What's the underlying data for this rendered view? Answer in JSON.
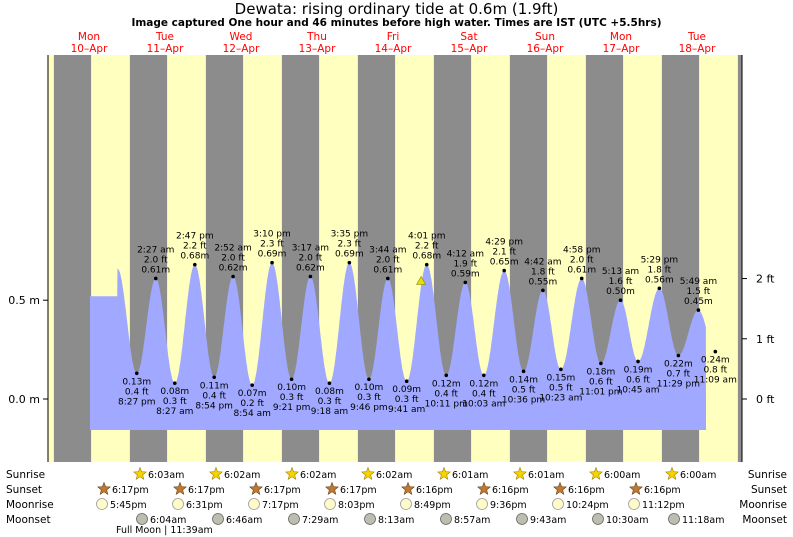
{
  "title": "Dewata: rising  ordinary tide at 0.6m (1.9ft)",
  "subtitle": "Image captured One hour and 46 minutes before high water. Times are IST (UTC +5.5hrs)",
  "colors": {
    "day": "#ffffc0",
    "night": "#8c8c8c",
    "tide": "#a0a8ff",
    "heading": "#ff0000",
    "marker": "#e8e000"
  },
  "days": [
    {
      "dow": "Mon",
      "date": "10–Apr"
    },
    {
      "dow": "Tue",
      "date": "11–Apr"
    },
    {
      "dow": "Wed",
      "date": "12–Apr"
    },
    {
      "dow": "Thu",
      "date": "13–Apr"
    },
    {
      "dow": "Fri",
      "date": "14–Apr"
    },
    {
      "dow": "Sat",
      "date": "15–Apr"
    },
    {
      "dow": "Sun",
      "date": "16–Apr"
    },
    {
      "dow": "Mon",
      "date": "17–Apr"
    },
    {
      "dow": "Tue",
      "date": "18–Apr"
    }
  ],
  "chart_data": {
    "type": "area",
    "title": "Dewata: rising  ordinary tide at 0.6m (1.9ft)",
    "y_left_label_unit": "m",
    "y_right_label_unit": "ft",
    "y_left_ticks": [
      "0.0 m",
      "0.5 m"
    ],
    "y_right_ticks": [
      "0 ft",
      "1 ft",
      "2 ft"
    ],
    "ylim_m": [
      -0.08,
      0.87
    ],
    "current": {
      "day": "Fri 14–Apr",
      "height_m": 0.6,
      "height_ft": 1.9,
      "state": "rising"
    },
    "tides": [
      {
        "day": "Mon 10–Apr",
        "time": "8:27 pm",
        "type": "low",
        "m": 0.13,
        "ft": 0.4
      },
      {
        "day": "Tue 11–Apr",
        "time": "2:27 am",
        "type": "high",
        "m": 0.61,
        "ft": 2.0
      },
      {
        "day": "Tue 11–Apr",
        "time": "8:27 am",
        "type": "low",
        "m": 0.08,
        "ft": 0.3
      },
      {
        "day": "Tue 11–Apr",
        "time": "2:47 pm",
        "type": "high",
        "m": 0.68,
        "ft": 2.2
      },
      {
        "day": "Tue 11–Apr",
        "time": "8:54 pm",
        "type": "low",
        "m": 0.11,
        "ft": 0.4
      },
      {
        "day": "Wed 12–Apr",
        "time": "2:52 am",
        "type": "high",
        "m": 0.62,
        "ft": 2.0
      },
      {
        "day": "Wed 12–Apr",
        "time": "8:54 am",
        "type": "low",
        "m": 0.07,
        "ft": 0.2
      },
      {
        "day": "Wed 12–Apr",
        "time": "3:10 pm",
        "type": "high",
        "m": 0.69,
        "ft": 2.3
      },
      {
        "day": "Wed 12–Apr",
        "time": "9:21 pm",
        "type": "low",
        "m": 0.1,
        "ft": 0.3
      },
      {
        "day": "Thu 13–Apr",
        "time": "3:17 am",
        "type": "high",
        "m": 0.62,
        "ft": 2.0
      },
      {
        "day": "Thu 13–Apr",
        "time": "9:18 am",
        "type": "low",
        "m": 0.08,
        "ft": 0.3
      },
      {
        "day": "Thu 13–Apr",
        "time": "3:35 pm",
        "type": "high",
        "m": 0.69,
        "ft": 2.3
      },
      {
        "day": "Thu 13–Apr",
        "time": "9:46 pm",
        "type": "low",
        "m": 0.1,
        "ft": 0.3
      },
      {
        "day": "Fri 14–Apr",
        "time": "3:44 am",
        "type": "high",
        "m": 0.61,
        "ft": 2.0
      },
      {
        "day": "Fri 14–Apr",
        "time": "9:41 am",
        "type": "low",
        "m": 0.09,
        "ft": 0.3
      },
      {
        "day": "Fri 14–Apr",
        "time": "4:01 pm",
        "type": "high",
        "m": 0.68,
        "ft": 2.2
      },
      {
        "day": "Fri 14–Apr",
        "time": "10:11 pm",
        "type": "low",
        "m": 0.12,
        "ft": 0.4
      },
      {
        "day": "Sat 15–Apr",
        "time": "4:12 am",
        "type": "high",
        "m": 0.59,
        "ft": 1.9
      },
      {
        "day": "Sat 15–Apr",
        "time": "10:03 am",
        "type": "low",
        "m": 0.12,
        "ft": 0.4
      },
      {
        "day": "Sat 15–Apr",
        "time": "4:29 pm",
        "type": "high",
        "m": 0.65,
        "ft": 2.1
      },
      {
        "day": "Sat 15–Apr",
        "time": "10:36 pm",
        "type": "low",
        "m": 0.14,
        "ft": 0.5
      },
      {
        "day": "Sun 16–Apr",
        "time": "4:42 am",
        "type": "high",
        "m": 0.55,
        "ft": 1.8
      },
      {
        "day": "Sun 16–Apr",
        "time": "10:23 am",
        "type": "low",
        "m": 0.15,
        "ft": 0.5
      },
      {
        "day": "Sun 16–Apr",
        "time": "4:58 pm",
        "type": "high",
        "m": 0.61,
        "ft": 2.0
      },
      {
        "day": "Sun 16–Apr",
        "time": "11:01 pm",
        "type": "low",
        "m": 0.18,
        "ft": 0.6
      },
      {
        "day": "Mon 17–Apr",
        "time": "5:13 am",
        "type": "high",
        "m": 0.5,
        "ft": 1.6
      },
      {
        "day": "Mon 17–Apr",
        "time": "10:45 am",
        "type": "low",
        "m": 0.19,
        "ft": 0.6
      },
      {
        "day": "Mon 17–Apr",
        "time": "5:29 pm",
        "type": "high",
        "m": 0.56,
        "ft": 1.8
      },
      {
        "day": "Mon 17–Apr",
        "time": "11:29 pm",
        "type": "low",
        "m": 0.22,
        "ft": 0.7
      },
      {
        "day": "Tue 18–Apr",
        "time": "5:49 am",
        "type": "high",
        "m": 0.45,
        "ft": 1.5
      },
      {
        "day": "Tue 18–Apr",
        "time": "11:09 am",
        "type": "low",
        "m": 0.24,
        "ft": 0.8
      }
    ]
  },
  "astro": {
    "row_labels": {
      "sunrise": "Sunrise",
      "sunset": "Sunset",
      "moonrise": "Moonrise",
      "moonset": "Moonset"
    },
    "sunrise": [
      "6:03am",
      "6:02am",
      "6:02am",
      "6:02am",
      "6:01am",
      "6:01am",
      "6:00am",
      "6:00am"
    ],
    "sunset": [
      "6:17pm",
      "6:17pm",
      "6:17pm",
      "6:17pm",
      "6:16pm",
      "6:16pm",
      "6:16pm",
      "6:16pm"
    ],
    "moonrise": [
      "5:45pm",
      "6:31pm",
      "7:17pm",
      "8:03pm",
      "8:49pm",
      "9:36pm",
      "10:24pm",
      "11:12pm"
    ],
    "moonset": [
      "6:04am",
      "6:46am",
      "7:29am",
      "8:13am",
      "8:57am",
      "9:43am",
      "10:30am",
      "11:18am"
    ],
    "moon_phase": "Full Moon | 11:39am"
  }
}
